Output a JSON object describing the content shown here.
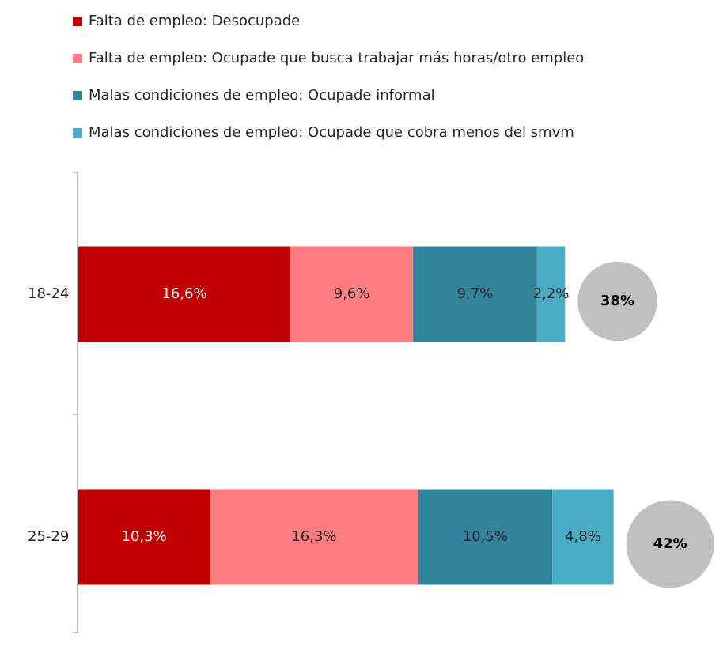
{
  "chart_data": {
    "type": "stacked-bar-horizontal",
    "categories": [
      "18-24",
      "25-29"
    ],
    "series": [
      {
        "name": "Falta de empleo: Desocupade",
        "color": "#c00000",
        "label_color": "#ffffff",
        "values": [
          16.6,
          10.3
        ],
        "value_labels": [
          "16,6%",
          "10,3%"
        ]
      },
      {
        "name": "Falta de empleo: Ocupade que busca trabajar más horas/otro empleo",
        "color": "#ff7c80",
        "label_color": "#262626",
        "values": [
          9.6,
          16.3
        ],
        "value_labels": [
          "9,6%",
          "16,3%"
        ]
      },
      {
        "name": "Malas condiciones de empleo: Ocupade informal",
        "color": "#31849b",
        "label_color": "#262626",
        "values": [
          9.7,
          10.5
        ],
        "value_labels": [
          "9,7%",
          "10,5%"
        ]
      },
      {
        "name": "Malas condiciones de empleo: Ocupade que cobra menos del smvm",
        "color": "#4bacc6",
        "label_color": "#262626",
        "values": [
          2.2,
          4.8
        ],
        "value_labels": [
          "2,2%",
          "4,8%"
        ]
      }
    ],
    "totals": {
      "color": "#c0c0c0",
      "values": [
        38,
        42
      ],
      "value_labels": [
        "38%",
        "42%"
      ]
    }
  }
}
